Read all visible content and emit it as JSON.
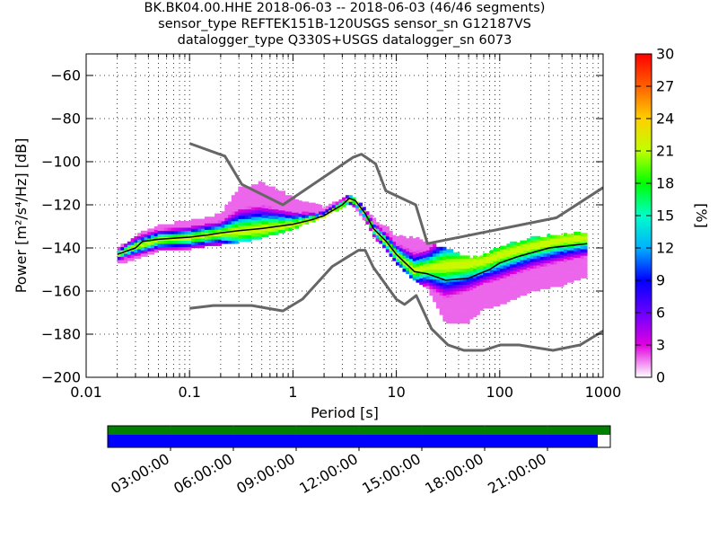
{
  "title": {
    "line1": "BK.BK04.00.HHE   2018-06-03 -- 2018-06-03  (46/46 segments)",
    "line2": "sensor_type REFTEK151B-120USGS sensor_sn G12187VS",
    "line3": "datalogger_type Q330S+USGS datalogger_sn 6073"
  },
  "colors": {
    "noise_model": "#666666",
    "mean_curve": "#000000",
    "coverage_data": "#008000",
    "coverage_gaps_bar": "#0000ff"
  },
  "chart_data": [
    {
      "type": "heatmap",
      "description": "Probabilistic power spectral density (PPSD)",
      "xlabel": "Period [s]",
      "ylabel": "Power [m²/s⁴/Hz] [dB]",
      "xscale": "log",
      "xlim": [
        0.01,
        1000
      ],
      "ylim": [
        -200,
        -50
      ],
      "x_ticks": [
        0.01,
        0.1,
        1,
        10,
        100,
        1000
      ],
      "x_tick_labels": [
        "0.01",
        "0.1",
        "1",
        "10",
        "100",
        "1000"
      ],
      "y_ticks": [
        -200,
        -180,
        -160,
        -140,
        -120,
        -100,
        -80,
        -60
      ],
      "grid": true,
      "colorbar": {
        "label": "[%]",
        "range": [
          0,
          30
        ],
        "ticks": [
          0,
          3,
          6,
          9,
          12,
          15,
          18,
          21,
          24,
          27,
          30
        ],
        "colormap": "pqlx"
      },
      "series": [
        {
          "name": "NHNM",
          "style": "noise_model_gray",
          "x": [
            0.1,
            0.22,
            0.32,
            0.8,
            3.8,
            4.6,
            6.3,
            7.9,
            15.4,
            20,
            354,
            1000
          ],
          "y": [
            -91.5,
            -97.4,
            -110.5,
            -120,
            -98,
            -96.5,
            -101,
            -113.5,
            -120,
            -138,
            -126,
            -112
          ]
        },
        {
          "name": "NLNM",
          "style": "noise_model_gray",
          "x": [
            0.1,
            0.17,
            0.4,
            0.8,
            1.24,
            2.4,
            4.3,
            5,
            6,
            10,
            12,
            15.6,
            21.9,
            31.6,
            45,
            70,
            101,
            154,
            328,
            600,
            1000
          ],
          "y": [
            -168,
            -166.7,
            -166.7,
            -169.2,
            -163.7,
            -148.6,
            -141.1,
            -141.1,
            -149,
            -163.8,
            -166.2,
            -162.1,
            -177.5,
            -185,
            -187.5,
            -187.5,
            -185,
            -185,
            -187.5,
            -185,
            -178.5
          ]
        },
        {
          "name": "mean",
          "style": "mean_curve",
          "x": [
            0.02,
            0.03,
            0.035,
            0.05,
            0.1,
            0.15,
            0.2,
            0.3,
            0.5,
            1,
            1.5,
            2,
            3,
            3.5,
            4,
            5,
            6,
            8,
            10,
            15,
            20,
            30,
            50,
            80,
            100,
            150,
            300,
            700
          ],
          "y": [
            -143,
            -140,
            -137,
            -136,
            -135,
            -134,
            -133,
            -132,
            -131,
            -129,
            -127,
            -125,
            -120,
            -117,
            -118,
            -124,
            -131,
            -137,
            -143,
            -151,
            -152,
            -155,
            -154,
            -150,
            -147,
            -144,
            -140,
            -138
          ]
        }
      ],
      "density_band": {
        "x": [
          0.02,
          0.03,
          0.05,
          0.1,
          0.2,
          0.3,
          0.5,
          1,
          2,
          3,
          3.5,
          4,
          5,
          6,
          8,
          10,
          15,
          20,
          30,
          50,
          70,
          100,
          200,
          400,
          700
        ],
        "y_low": [
          -147,
          -145,
          -141,
          -140,
          -138,
          -137,
          -135,
          -131,
          -125,
          -121,
          -119,
          -121,
          -127,
          -134,
          -141,
          -147,
          -155,
          -158,
          -175,
          -174,
          -168,
          -166,
          -160,
          -157,
          -153
        ],
        "y_high": [
          -141,
          -135,
          -130,
          -128,
          -125,
          -113,
          -110,
          -117,
          -122,
          -118,
          -116,
          -118,
          -122,
          -127,
          -131,
          -135,
          -136,
          -138,
          -141,
          -145,
          -144,
          -140,
          -136,
          -134,
          -133
        ],
        "peak_y": [
          -144,
          -140,
          -137,
          -136,
          -134,
          -133,
          -132,
          -130,
          -126,
          -121,
          -118,
          -119,
          -125,
          -132,
          -138,
          -144,
          -151,
          -150,
          -149,
          -148,
          -147,
          -144,
          -140,
          -137,
          -136
        ]
      }
    },
    {
      "type": "timeline",
      "description": "Data coverage bar",
      "x_tick_labels": [
        "03:00:00",
        "06:00:00",
        "09:00:00",
        "12:00:00",
        "15:00:00",
        "18:00:00",
        "21:00:00"
      ],
      "x_ticks_hours": [
        3,
        6,
        9,
        12,
        15,
        18,
        21
      ],
      "xlim_hours": [
        0,
        24
      ],
      "processed_coverage_end_hours": 23.4
    }
  ]
}
